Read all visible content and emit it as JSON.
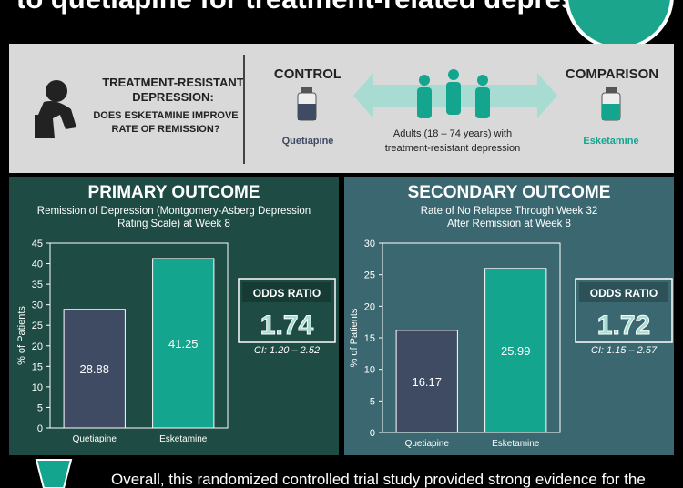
{
  "header": {
    "title": "to quetiapine for treatment-related depression"
  },
  "intro": {
    "question": [
      "TREATMENT-RESISTANT",
      "DEPRESSION:",
      "DOES ESKETAMINE IMPROVE",
      "RATE OF REMISSION?"
    ],
    "control_label": "CONTROL",
    "control_drug": "Quetiapine",
    "comparison_label": "COMPARISON",
    "comparison_drug": "Esketamine",
    "population": [
      "Adults (18 – 74 years) with",
      "treatment-resistant depression"
    ]
  },
  "chart_data": [
    {
      "type": "bar",
      "title": "PRIMARY OUTCOME",
      "subtitle": [
        "Remission of Depression (Montgomery-Asberg Depression",
        "Rating Scale) at Week 8"
      ],
      "y_label": "% of Patients",
      "categories": [
        "Quetiapine",
        "Esketamine"
      ],
      "values": [
        28.88,
        41.25
      ],
      "colors": [
        "#3f4a63",
        "#14a58f"
      ],
      "ylim": [
        0,
        45
      ],
      "yticks": [
        0,
        5,
        10,
        15,
        20,
        25,
        30,
        35,
        40,
        45
      ],
      "odds_ratio": {
        "label": "ODDS RATIO",
        "value": "1.74",
        "ci": "CI: 1.20 – 2.52"
      }
    },
    {
      "type": "bar",
      "title": "SECONDARY OUTCOME",
      "subtitle": [
        "Rate of No Relapse Through Week 32",
        "After Remission at Week 8"
      ],
      "y_label": "% of Patients",
      "categories": [
        "Quetiapine",
        "Esketamine"
      ],
      "values": [
        16.17,
        25.99
      ],
      "colors": [
        "#3f4a63",
        "#14a58f"
      ],
      "ylim": [
        0,
        30
      ],
      "yticks": [
        0,
        5,
        10,
        15,
        20,
        25,
        30
      ],
      "odds_ratio": {
        "label": "ODDS RATIO",
        "value": "1.72",
        "ci": "CI: 1.15 – 2.57"
      }
    }
  ],
  "footer": {
    "text": "Overall, this randomized controlled trial study provided strong evidence for the"
  }
}
